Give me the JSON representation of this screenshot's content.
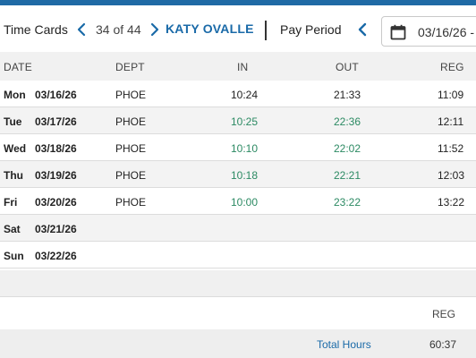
{
  "toolbar": {
    "title": "Time Cards",
    "counter": "34 of 44",
    "employee_name": "KATY OVALLE",
    "pay_period_label": "Pay Period",
    "date_value": "03/16/26 -",
    "prev_icon": "chevron-left-icon",
    "next_icon": "chevron-right-icon",
    "calendar_icon": "calendar-icon"
  },
  "colors": {
    "accent": "#1f6aa5",
    "time_green": "#2c8a63",
    "link_blue": "#1a6aa8"
  },
  "table": {
    "headers": {
      "date": "DATE",
      "dept": "DEPT",
      "in": "IN",
      "out": "OUT",
      "reg": "REG"
    },
    "rows": [
      {
        "day": "Mon",
        "date": "03/16/26",
        "dept": "PHOE",
        "in": "10:24",
        "out": "21:33",
        "reg": "11:09"
      },
      {
        "day": "Tue",
        "date": "03/17/26",
        "dept": "PHOE",
        "in": "10:25",
        "out": "22:36",
        "reg": "12:11"
      },
      {
        "day": "Wed",
        "date": "03/18/26",
        "dept": "PHOE",
        "in": "10:10",
        "out": "22:02",
        "reg": "11:52"
      },
      {
        "day": "Thu",
        "date": "03/19/26",
        "dept": "PHOE",
        "in": "10:18",
        "out": "22:21",
        "reg": "12:03"
      },
      {
        "day": "Fri",
        "date": "03/20/26",
        "dept": "PHOE",
        "in": "10:00",
        "out": "23:22",
        "reg": "13:22"
      },
      {
        "day": "Sat",
        "date": "03/21/26",
        "dept": "",
        "in": "",
        "out": "",
        "reg": ""
      },
      {
        "day": "Sun",
        "date": "03/22/26",
        "dept": "",
        "in": "",
        "out": "",
        "reg": ""
      }
    ]
  },
  "summary": {
    "reg_header": "REG",
    "total_label": "Total Hours",
    "total_value": "60:37"
  }
}
